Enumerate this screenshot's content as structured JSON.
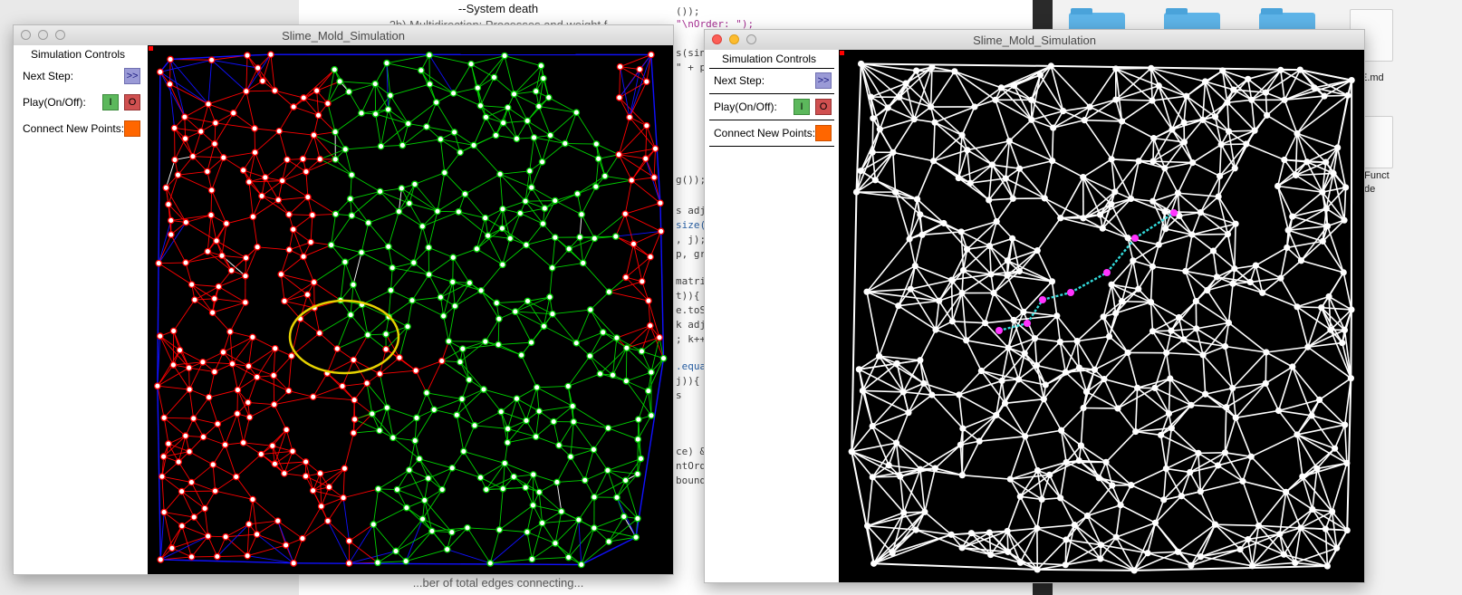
{
  "background_doc": {
    "line1": "--System death",
    "line2": "2b) Multidirection: Processes and weight f",
    "line3": "...ber of total edges connecting..."
  },
  "background_code": {
    "lines": [
      "());",
      "\"\\nOrder: \");",
      "s(sin",
      "\" + p",
      "g());",
      "s adja",
      "size(",
      ", j);",
      "p, gra",
      "matrix",
      "t)){",
      "e.toSt",
      "k adja",
      "; k++)",
      ".equa",
      "j)){",
      "s",
      "ce) &&",
      "ntOrde",
      "bounds"
    ]
  },
  "background_finder": {
    "file_label_1": "E.md",
    "file_label_2": "_Funct",
    "file_label_3": "de"
  },
  "window_left": {
    "title": "Slime_Mold_Simulation",
    "panel": {
      "title": "Simulation Controls",
      "next_label": "Next Step:",
      "next_btn": ">>",
      "play_label": "Play(On/Off):",
      "on_btn": "I",
      "off_btn": "O",
      "connect_label": "Connect New Points:"
    },
    "colors": {
      "edge_red": "#ff0000",
      "edge_green": "#00d000",
      "edge_blue": "#1010ff",
      "edge_white": "#ffffff",
      "highlight_ellipse": "#e6d200",
      "node_fill": "#ffffff"
    }
  },
  "window_right": {
    "title": "Slime_Mold_Simulation",
    "panel": {
      "title": "Simulation Controls",
      "next_label": "Next Step:",
      "next_btn": ">>",
      "play_label": "Play(On/Off):",
      "on_btn": "I",
      "off_btn": "O",
      "connect_label": "Connect New Points:"
    },
    "colors": {
      "edge": "#ffffff",
      "path_edge": "#33dddd",
      "path_node": "#ff33ff"
    }
  }
}
